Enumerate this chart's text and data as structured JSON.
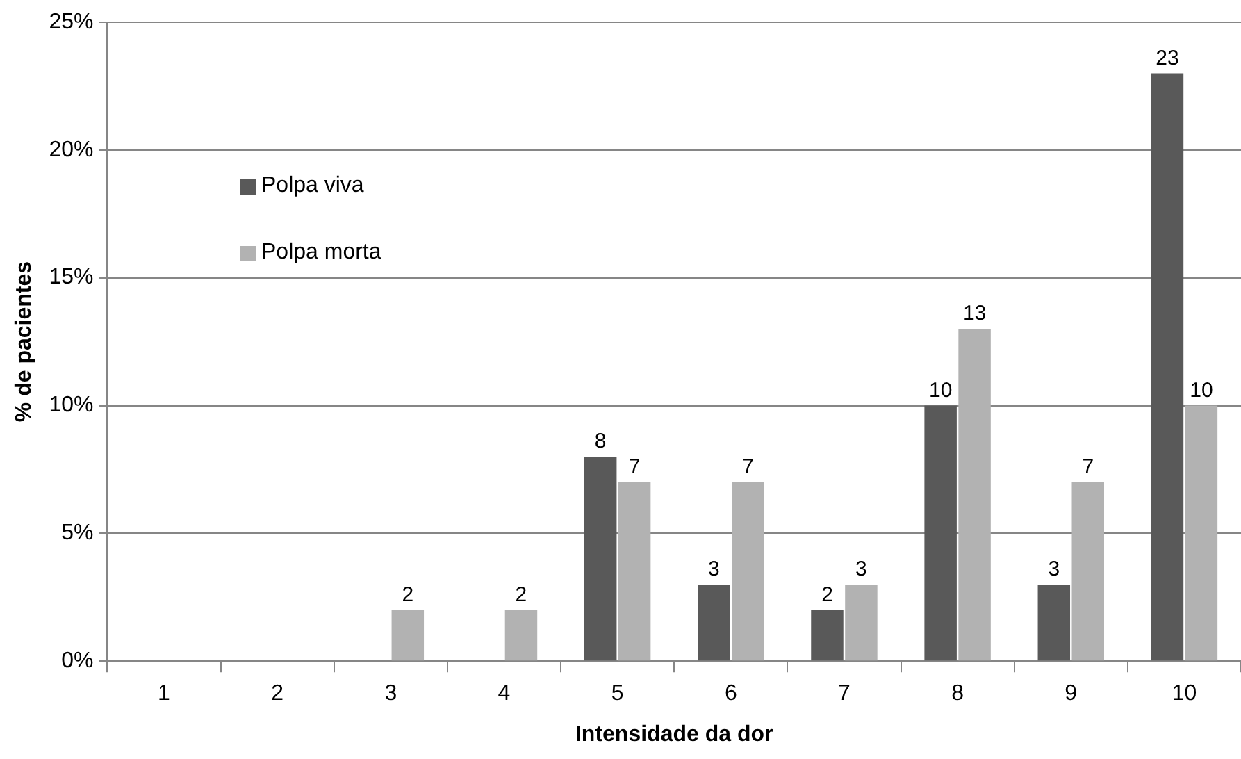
{
  "chart_data": {
    "type": "bar",
    "xlabel": "Intensidade da dor",
    "ylabel": "% de pacientes",
    "categories": [
      "1",
      "2",
      "3",
      "4",
      "5",
      "6",
      "7",
      "8",
      "9",
      "10"
    ],
    "series": [
      {
        "name": "Polpa viva",
        "color": "#595959",
        "values": [
          0,
          0,
          0,
          0,
          8,
          3,
          2,
          10,
          3,
          23
        ],
        "value_labels": [
          null,
          null,
          null,
          null,
          "8",
          "3",
          "2",
          "10",
          "3",
          "23"
        ]
      },
      {
        "name": "Polpa morta",
        "color": "#b2b2b2",
        "values": [
          0,
          0,
          2,
          2,
          7,
          7,
          3,
          13,
          7,
          10
        ],
        "value_labels": [
          null,
          null,
          "2",
          "2",
          "7",
          "7",
          "3",
          "13",
          "7",
          "10"
        ]
      }
    ],
    "ylim": [
      0,
      25
    ],
    "yticks": [
      {
        "value": 0,
        "label": "0%"
      },
      {
        "value": 5,
        "label": "5%"
      },
      {
        "value": 10,
        "label": "10%"
      },
      {
        "value": 15,
        "label": "15%"
      },
      {
        "value": 20,
        "label": "20%"
      },
      {
        "value": 25,
        "label": "25%"
      }
    ],
    "grid": "y",
    "legend": "top left"
  }
}
